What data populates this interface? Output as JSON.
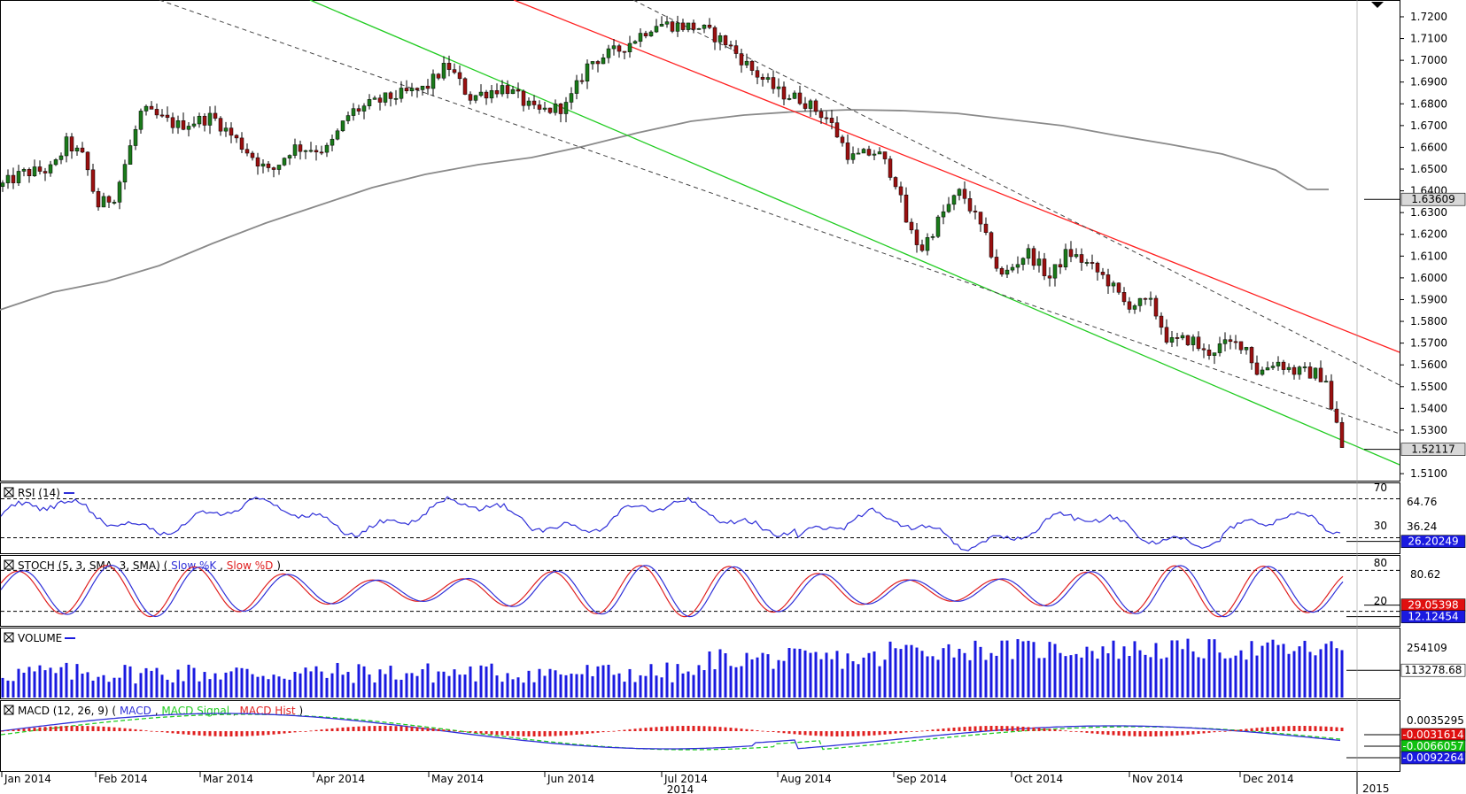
{
  "chart_data": {
    "type": "candlestick",
    "panels": [
      {
        "id": "price",
        "y_ticks": [
          "1.7200",
          "1.7100",
          "1.7000",
          "1.6900",
          "1.6800",
          "1.6700",
          "1.6600",
          "1.6500",
          "1.6400",
          "1.6300",
          "1.6200",
          "1.6100",
          "1.6000",
          "1.5900",
          "1.5800",
          "1.5700",
          "1.5600",
          "1.5500",
          "1.5400",
          "1.5300",
          "1.5100"
        ],
        "ylim": [
          1.508,
          1.7265
        ],
        "value_labels": [
          {
            "text": "1.63609",
            "value": 1.63609,
            "style": "grey"
          },
          {
            "text": "1.52117",
            "value": 1.52117,
            "style": "grey"
          }
        ],
        "overlays": [
          {
            "kind": "moving-average",
            "color": "#8a8a8a"
          },
          {
            "kind": "trend-line",
            "color": "#ff2020"
          },
          {
            "kind": "trend-line",
            "color": "#22cc22"
          },
          {
            "kind": "channel-line",
            "color": "#444444",
            "dashed": true
          },
          {
            "kind": "channel-line",
            "color": "#444444",
            "dashed": true
          }
        ]
      },
      {
        "id": "rsi",
        "legend": "RSI (14)",
        "levels": [
          "70",
          "30"
        ],
        "y_labels": [
          "64.76",
          "36.24"
        ],
        "value_labels": [
          {
            "text": "26.20249",
            "style": "blue"
          }
        ]
      },
      {
        "id": "stoch",
        "legend": "STOCH (5, 3, SMA, 3, SMA)",
        "series_names": [
          "Slow %K",
          "Slow %D"
        ],
        "levels": [
          "80",
          "20"
        ],
        "y_labels": [
          "80.62"
        ],
        "value_labels": [
          {
            "text": "29.05398",
            "style": "red"
          },
          {
            "text": "12.12454",
            "style": "blue"
          }
        ]
      },
      {
        "id": "volume",
        "legend": "VOLUME",
        "y_labels": [
          "254109"
        ],
        "value_labels": [
          {
            "text": "113278.68",
            "style": "white"
          }
        ]
      },
      {
        "id": "macd",
        "legend": "MACD (12, 26, 9)",
        "series_names": [
          "MACD",
          "MACD Signal",
          "MACD Hist"
        ],
        "y_labels": [
          "0.0035295"
        ],
        "value_labels": [
          {
            "text": "-0.0031614",
            "style": "red"
          },
          {
            "text": "-0.0066057",
            "style": "green"
          },
          {
            "text": "-0.0092264",
            "style": "blue"
          }
        ]
      }
    ],
    "x_tick_labels": [
      "Jan 2014",
      "Feb 2014",
      "Mar 2014",
      "Apr 2014",
      "May 2014",
      "Jun 2014",
      "Jul 2014",
      "Aug 2014",
      "Sep 2014",
      "Oct 2014",
      "Nov 2014",
      "Dec 2014"
    ],
    "year_labels": [
      "2014",
      "2015"
    ],
    "colors": {
      "bull_candle": "#1a7a1a",
      "bear_candle": "#9a1010",
      "rsi": "#2f2fd8",
      "stoch_k": "#2f2fd8",
      "stoch_d": "#e02020",
      "volume": "#1a1ae0",
      "macd": "#2f2fd8",
      "macd_signal": "#22cc22",
      "macd_hist": "#e02020"
    }
  }
}
